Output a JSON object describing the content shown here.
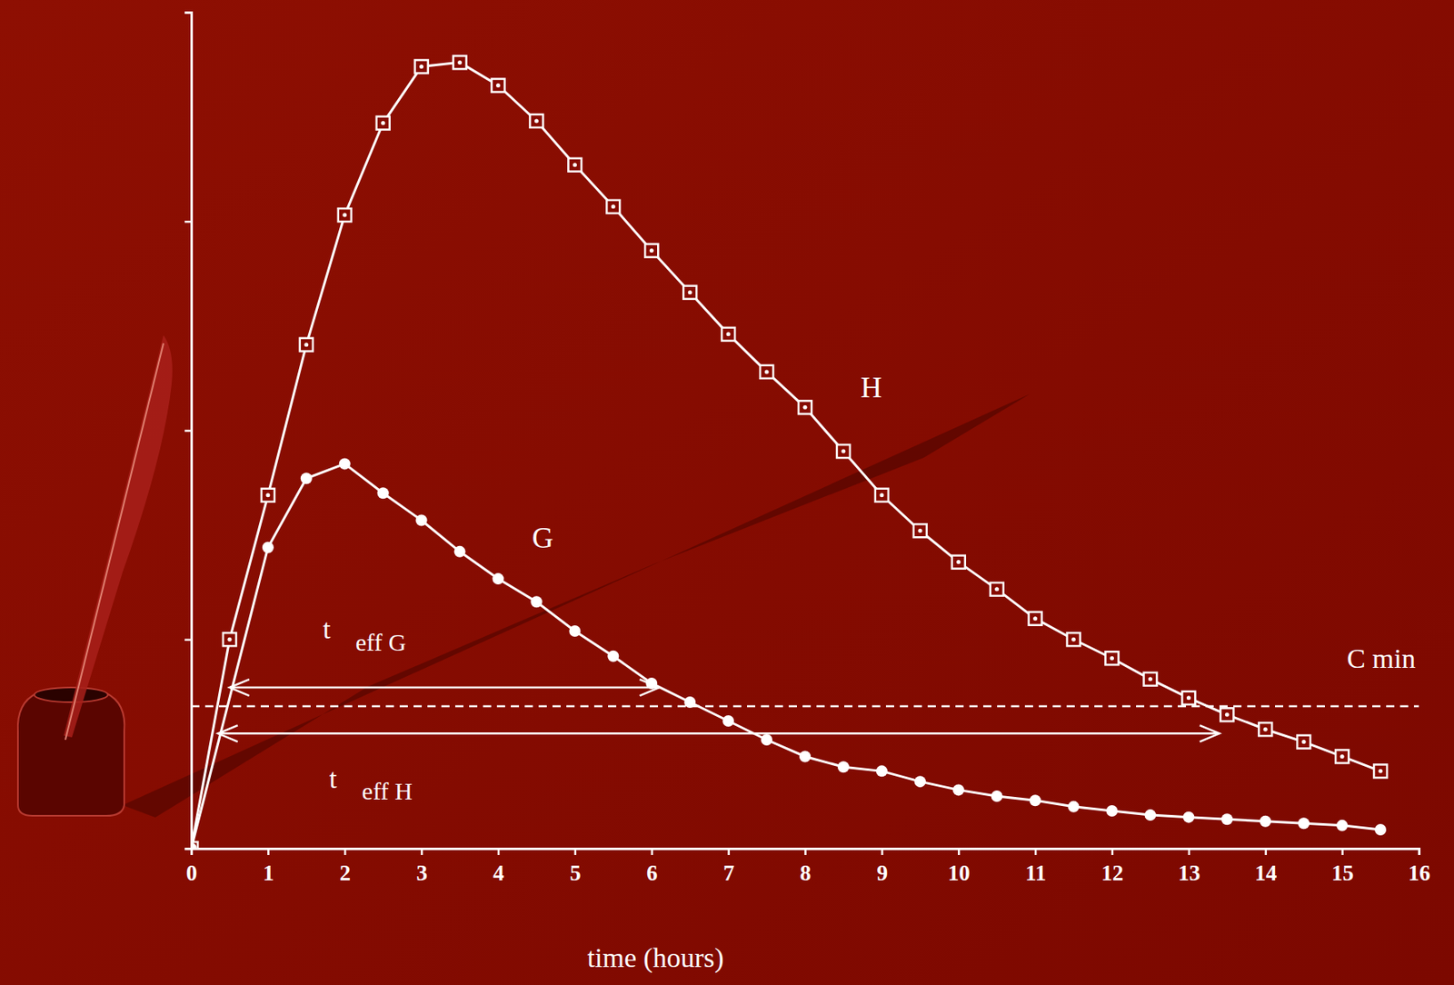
{
  "chart_data": {
    "type": "line",
    "xlabel": "time (hours)",
    "xlim": [
      0,
      16
    ],
    "xticks": [
      0,
      1,
      2,
      3,
      4,
      5,
      6,
      7,
      8,
      9,
      10,
      11,
      12,
      13,
      14,
      15,
      16
    ],
    "ylim": [
      0,
      4
    ],
    "yticks": [
      0,
      1,
      2,
      3,
      4
    ],
    "tick_labels": "x",
    "grid": false,
    "series": [
      {
        "name": "H",
        "color": "#ffffff",
        "marker": "square",
        "line_style": "solid",
        "x": [
          0,
          0.5,
          1,
          1.5,
          2,
          2.5,
          3,
          3.5,
          4,
          4.5,
          5,
          5.5,
          6,
          6.5,
          7,
          7.5,
          8,
          8.5,
          9,
          9.5,
          10,
          10.5,
          11,
          11.5,
          12,
          12.5,
          13,
          13.5,
          14,
          14.5,
          15,
          15.5
        ],
        "values": [
          0,
          1.0,
          1.69,
          2.41,
          3.03,
          3.47,
          3.74,
          3.76,
          3.65,
          3.48,
          3.27,
          3.07,
          2.86,
          2.66,
          2.46,
          2.28,
          2.11,
          1.9,
          1.69,
          1.52,
          1.37,
          1.24,
          1.1,
          1.0,
          0.91,
          0.81,
          0.72,
          0.64,
          0.57,
          0.51,
          0.44,
          0.37
        ]
      },
      {
        "name": "G",
        "color": "#ffffff",
        "marker": "circle",
        "line_style": "solid",
        "x": [
          0,
          1,
          1.5,
          2,
          2.5,
          3,
          3.5,
          4,
          4.5,
          5,
          5.5,
          6,
          6.5,
          7,
          7.5,
          8,
          8.5,
          9,
          9.5,
          10,
          10.5,
          11,
          11.5,
          12,
          12.5,
          13,
          13.5,
          14,
          14.5,
          15,
          15.5
        ],
        "values": [
          0,
          1.44,
          1.77,
          1.84,
          1.7,
          1.57,
          1.42,
          1.29,
          1.18,
          1.04,
          0.92,
          0.79,
          0.7,
          0.61,
          0.52,
          0.44,
          0.39,
          0.37,
          0.32,
          0.28,
          0.25,
          0.23,
          0.2,
          0.18,
          0.16,
          0.15,
          0.14,
          0.13,
          0.12,
          0.11,
          0.09
        ]
      }
    ],
    "threshold": {
      "label": "C min",
      "value": 0.68,
      "line_style": "dashed"
    },
    "annotations": [
      {
        "text": "t",
        "subscript": "eff G",
        "x_start": 0.5,
        "x_end": 6.1,
        "y": 0.77
      },
      {
        "text": "t",
        "subscript": "eff H",
        "x_start": 0.35,
        "x_end": 13.4,
        "y": 0.55
      }
    ]
  }
}
